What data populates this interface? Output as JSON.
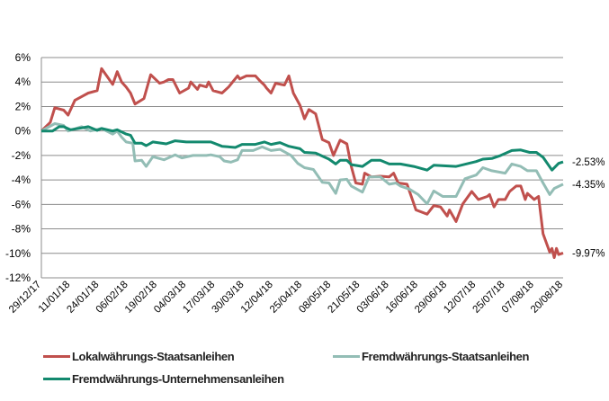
{
  "chart_data": {
    "type": "line",
    "title": "",
    "xlabel": "",
    "ylabel": "",
    "ylim": [
      -12,
      6
    ],
    "y_ticks": [
      "6%",
      "4%",
      "2%",
      "0%",
      "-2%",
      "-4%",
      "-6%",
      "-8%",
      "-10%",
      "-12%"
    ],
    "y_tick_values": [
      6,
      4,
      2,
      0,
      -2,
      -4,
      -6,
      -8,
      -10,
      -12
    ],
    "x_range": [
      "2017-12-29",
      "2018-08-20"
    ],
    "x_ticks": [
      "29/12/17",
      "11/01/18",
      "24/01/18",
      "06/02/18",
      "19/02/18",
      "04/03/18",
      "17/03/18",
      "30/03/18",
      "12/04/18",
      "25/04/18",
      "08/05/18",
      "21/05/18",
      "03/06/18",
      "16/06/18",
      "29/06/18",
      "12/07/18",
      "25/07/18",
      "07/08/18",
      "20/08/18"
    ],
    "grid": "horizontal",
    "legend_placement": "bottom",
    "unit": "%",
    "series": [
      {
        "name": "Lokalwährungs-Staatsanleihen",
        "color": "#C0504D",
        "end_label": "-9.97%",
        "points": [
          [
            "2017-12-29",
            0
          ],
          [
            "2018-01-02",
            0.7
          ],
          [
            "2018-01-04",
            1.9
          ],
          [
            "2018-01-08",
            1.7
          ],
          [
            "2018-01-10",
            1.3
          ],
          [
            "2018-01-13",
            2.5
          ],
          [
            "2018-01-16",
            2.8
          ],
          [
            "2018-01-19",
            3.1
          ],
          [
            "2018-01-23",
            3.3
          ],
          [
            "2018-01-25",
            5.1
          ],
          [
            "2018-01-30",
            3.8
          ],
          [
            "2018-02-01",
            4.85
          ],
          [
            "2018-02-03",
            4.0
          ],
          [
            "2018-02-05",
            3.6
          ],
          [
            "2018-02-07",
            3.1
          ],
          [
            "2018-02-09",
            2.2
          ],
          [
            "2018-02-13",
            2.65
          ],
          [
            "2018-02-16",
            4.6
          ],
          [
            "2018-02-20",
            3.9
          ],
          [
            "2018-02-22",
            4.0
          ],
          [
            "2018-02-24",
            4.2
          ],
          [
            "2018-02-26",
            4.2
          ],
          [
            "2018-03-01",
            3.1
          ],
          [
            "2018-03-05",
            3.5
          ],
          [
            "2018-03-06",
            4.0
          ],
          [
            "2018-03-09",
            3.4
          ],
          [
            "2018-03-10",
            3.75
          ],
          [
            "2018-03-13",
            3.6
          ],
          [
            "2018-03-14",
            4.0
          ],
          [
            "2018-03-16",
            3.3
          ],
          [
            "2018-03-20",
            3.1
          ],
          [
            "2018-03-23",
            3.6
          ],
          [
            "2018-03-27",
            4.5
          ],
          [
            "2018-03-28",
            4.25
          ],
          [
            "2018-03-31",
            4.5
          ],
          [
            "2018-04-04",
            4.5
          ],
          [
            "2018-04-06",
            4.1
          ],
          [
            "2018-04-08",
            3.75
          ],
          [
            "2018-04-09",
            3.5
          ],
          [
            "2018-04-11",
            3.1
          ],
          [
            "2018-04-13",
            3.9
          ],
          [
            "2018-04-17",
            3.75
          ],
          [
            "2018-04-19",
            4.5
          ],
          [
            "2018-04-21",
            3.1
          ],
          [
            "2018-04-24",
            2.1
          ],
          [
            "2018-04-26",
            1.0
          ],
          [
            "2018-04-28",
            1.75
          ],
          [
            "2018-05-01",
            1.4
          ],
          [
            "2018-05-04",
            -0.7
          ],
          [
            "2018-05-07",
            -0.95
          ],
          [
            "2018-05-09",
            -2.0
          ],
          [
            "2018-05-12",
            -0.75
          ],
          [
            "2018-05-15",
            -1.05
          ],
          [
            "2018-05-17",
            -2.9
          ],
          [
            "2018-05-19",
            -4.25
          ],
          [
            "2018-05-22",
            -4.35
          ],
          [
            "2018-05-23",
            -3.45
          ],
          [
            "2018-05-26",
            -3.75
          ],
          [
            "2018-05-30",
            -3.7
          ],
          [
            "2018-06-03",
            -3.75
          ],
          [
            "2018-06-05",
            -3.45
          ],
          [
            "2018-06-07",
            -4.25
          ],
          [
            "2018-06-11",
            -4.35
          ],
          [
            "2018-06-15",
            -6.45
          ],
          [
            "2018-06-20",
            -6.8
          ],
          [
            "2018-06-23",
            -6.1
          ],
          [
            "2018-06-26",
            -6.2
          ],
          [
            "2018-06-29",
            -6.95
          ],
          [
            "2018-06-30",
            -6.45
          ],
          [
            "2018-07-03",
            -7.4
          ],
          [
            "2018-07-06",
            -5.95
          ],
          [
            "2018-07-10",
            -4.95
          ],
          [
            "2018-07-13",
            -5.6
          ],
          [
            "2018-07-17",
            -5.35
          ],
          [
            "2018-07-18",
            -5.2
          ],
          [
            "2018-07-20",
            -6.2
          ],
          [
            "2018-07-22",
            -5.6
          ],
          [
            "2018-07-25",
            -5.6
          ],
          [
            "2018-07-27",
            -4.95
          ],
          [
            "2018-07-30",
            -4.5
          ],
          [
            "2018-08-01",
            -4.5
          ],
          [
            "2018-08-03",
            -5.6
          ],
          [
            "2018-08-04",
            -5.1
          ],
          [
            "2018-08-07",
            -5.6
          ],
          [
            "2018-08-09",
            -5.35
          ],
          [
            "2018-08-11",
            -8.4
          ],
          [
            "2018-08-14",
            -9.9
          ],
          [
            "2018-08-15",
            -9.6
          ],
          [
            "2018-08-16",
            -10.35
          ],
          [
            "2018-08-17",
            -9.6
          ],
          [
            "2018-08-18",
            -10.1
          ],
          [
            "2018-08-20",
            -9.97
          ]
        ]
      },
      {
        "name": "Fremdwährungs-Staatsanleihen",
        "color": "#93BDB5",
        "end_label": "-4.35%",
        "points": [
          [
            "2017-12-29",
            0
          ],
          [
            "2018-01-04",
            0.6
          ],
          [
            "2018-01-08",
            0.45
          ],
          [
            "2018-01-10",
            0
          ],
          [
            "2018-01-16",
            0.35
          ],
          [
            "2018-01-20",
            0
          ],
          [
            "2018-01-25",
            0.2
          ],
          [
            "2018-01-30",
            -0.25
          ],
          [
            "2018-02-01",
            0
          ],
          [
            "2018-02-03",
            -0.5
          ],
          [
            "2018-02-05",
            -0.9
          ],
          [
            "2018-02-08",
            -1.0
          ],
          [
            "2018-02-09",
            -2.45
          ],
          [
            "2018-02-12",
            -2.4
          ],
          [
            "2018-02-14",
            -2.9
          ],
          [
            "2018-02-17",
            -2.1
          ],
          [
            "2018-02-22",
            -2.35
          ],
          [
            "2018-02-27",
            -1.95
          ],
          [
            "2018-03-02",
            -2.2
          ],
          [
            "2018-03-07",
            -2.0
          ],
          [
            "2018-03-13",
            -2.0
          ],
          [
            "2018-03-15",
            -1.95
          ],
          [
            "2018-03-19",
            -2.1
          ],
          [
            "2018-03-21",
            -2.45
          ],
          [
            "2018-03-24",
            -2.55
          ],
          [
            "2018-03-27",
            -2.35
          ],
          [
            "2018-03-29",
            -1.6
          ],
          [
            "2018-04-03",
            -1.6
          ],
          [
            "2018-04-07",
            -1.3
          ],
          [
            "2018-04-11",
            -1.6
          ],
          [
            "2018-04-15",
            -1.5
          ],
          [
            "2018-04-20",
            -2.0
          ],
          [
            "2018-04-23",
            -2.65
          ],
          [
            "2018-04-26",
            -3.0
          ],
          [
            "2018-04-30",
            -3.15
          ],
          [
            "2018-05-04",
            -4.2
          ],
          [
            "2018-05-07",
            -4.25
          ],
          [
            "2018-05-10",
            -5.1
          ],
          [
            "2018-05-12",
            -4.0
          ],
          [
            "2018-05-15",
            -3.95
          ],
          [
            "2018-05-17",
            -4.5
          ],
          [
            "2018-05-22",
            -5.0
          ],
          [
            "2018-05-25",
            -3.75
          ],
          [
            "2018-05-30",
            -3.75
          ],
          [
            "2018-06-03",
            -4.35
          ],
          [
            "2018-06-06",
            -4.25
          ],
          [
            "2018-06-08",
            -4.5
          ],
          [
            "2018-06-12",
            -4.75
          ],
          [
            "2018-06-16",
            -5.2
          ],
          [
            "2018-06-20",
            -5.95
          ],
          [
            "2018-06-23",
            -4.9
          ],
          [
            "2018-06-27",
            -5.35
          ],
          [
            "2018-07-03",
            -5.35
          ],
          [
            "2018-07-07",
            -3.9
          ],
          [
            "2018-07-12",
            -3.6
          ],
          [
            "2018-07-15",
            -3.0
          ],
          [
            "2018-07-19",
            -3.25
          ],
          [
            "2018-07-25",
            -3.45
          ],
          [
            "2018-07-28",
            -2.7
          ],
          [
            "2018-08-01",
            -2.9
          ],
          [
            "2018-08-04",
            -3.25
          ],
          [
            "2018-08-08",
            -3.25
          ],
          [
            "2018-08-11",
            -4.25
          ],
          [
            "2018-08-14",
            -5.2
          ],
          [
            "2018-08-16",
            -4.7
          ],
          [
            "2018-08-20",
            -4.35
          ]
        ]
      },
      {
        "name": "Fremdwährungs-Unternehmensanleihen",
        "color": "#13896E",
        "end_label": "-2.53%",
        "points": [
          [
            "2017-12-29",
            0
          ],
          [
            "2018-01-03",
            0
          ],
          [
            "2018-01-06",
            0.35
          ],
          [
            "2018-01-08",
            0.35
          ],
          [
            "2018-01-11",
            0.1
          ],
          [
            "2018-01-16",
            0.25
          ],
          [
            "2018-01-19",
            0.35
          ],
          [
            "2018-01-23",
            0.05
          ],
          [
            "2018-01-25",
            0.2
          ],
          [
            "2018-01-30",
            0
          ],
          [
            "2018-02-01",
            0.1
          ],
          [
            "2018-02-05",
            -0.25
          ],
          [
            "2018-02-07",
            -0.35
          ],
          [
            "2018-02-09",
            -1.0
          ],
          [
            "2018-02-12",
            -1.0
          ],
          [
            "2018-02-14",
            -1.2
          ],
          [
            "2018-02-17",
            -0.9
          ],
          [
            "2018-02-23",
            -1.05
          ],
          [
            "2018-02-27",
            -0.8
          ],
          [
            "2018-03-04",
            -0.9
          ],
          [
            "2018-03-15",
            -0.9
          ],
          [
            "2018-03-20",
            -1.25
          ],
          [
            "2018-03-26",
            -1.35
          ],
          [
            "2018-03-29",
            -1.1
          ],
          [
            "2018-04-04",
            -1.1
          ],
          [
            "2018-04-08",
            -0.9
          ],
          [
            "2018-04-11",
            -1.1
          ],
          [
            "2018-04-15",
            -0.95
          ],
          [
            "2018-04-19",
            -1.25
          ],
          [
            "2018-04-24",
            -1.45
          ],
          [
            "2018-04-26",
            -1.75
          ],
          [
            "2018-05-01",
            -1.8
          ],
          [
            "2018-05-07",
            -2.3
          ],
          [
            "2018-05-10",
            -2.7
          ],
          [
            "2018-05-12",
            -2.4
          ],
          [
            "2018-05-15",
            -2.4
          ],
          [
            "2018-05-17",
            -2.75
          ],
          [
            "2018-05-22",
            -2.9
          ],
          [
            "2018-05-26",
            -2.4
          ],
          [
            "2018-05-30",
            -2.4
          ],
          [
            "2018-06-03",
            -2.7
          ],
          [
            "2018-06-08",
            -2.7
          ],
          [
            "2018-06-14",
            -2.9
          ],
          [
            "2018-06-20",
            -3.2
          ],
          [
            "2018-06-23",
            -2.8
          ],
          [
            "2018-07-03",
            -2.9
          ],
          [
            "2018-07-12",
            -2.5
          ],
          [
            "2018-07-15",
            -2.3
          ],
          [
            "2018-07-19",
            -2.25
          ],
          [
            "2018-07-23",
            -2.0
          ],
          [
            "2018-07-28",
            -1.6
          ],
          [
            "2018-08-01",
            -1.55
          ],
          [
            "2018-08-05",
            -1.75
          ],
          [
            "2018-08-08",
            -1.75
          ],
          [
            "2018-08-11",
            -2.15
          ],
          [
            "2018-08-15",
            -3.2
          ],
          [
            "2018-08-18",
            -2.65
          ],
          [
            "2018-08-20",
            -2.53
          ]
        ]
      }
    ]
  }
}
